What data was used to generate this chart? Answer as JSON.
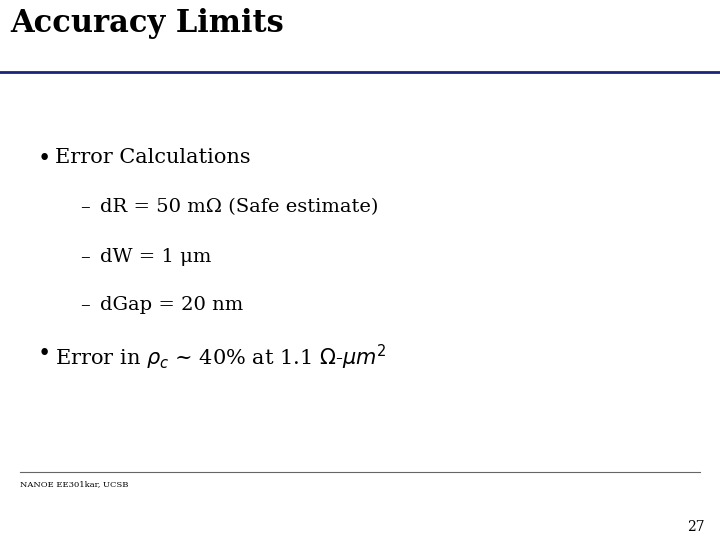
{
  "title": "Accuracy Limits",
  "title_color": "#000000",
  "title_fontsize": 22,
  "title_line_color": "#1a237e",
  "background_color": "#ffffff",
  "bullet1": "Error Calculations",
  "sub1": "dR = 50 mΩ (Safe estimate)",
  "sub2": "dW = 1 μm",
  "sub3": "dGap = 20 nm",
  "footer_text": "NANOE EE301kar, UCSB",
  "footer_fontsize": 6,
  "page_number": "27",
  "page_fontsize": 10,
  "bullet_fontsize": 15,
  "sub_fontsize": 14,
  "bullet2_fontsize": 15
}
